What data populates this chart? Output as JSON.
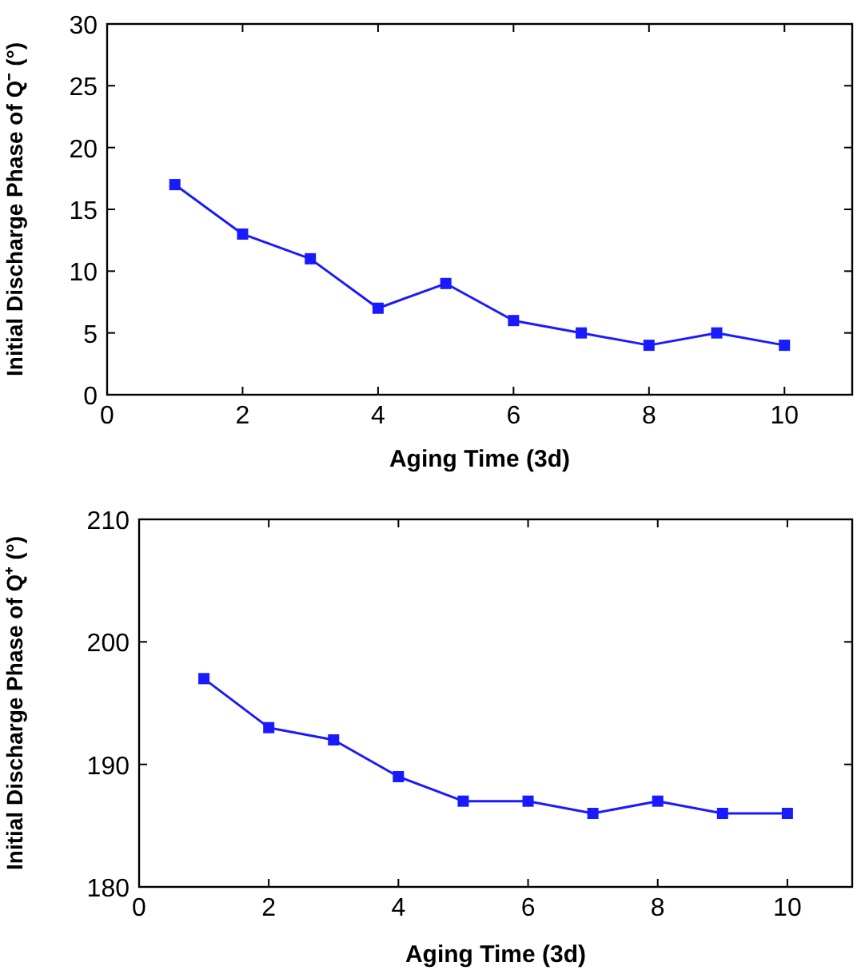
{
  "chart_data": [
    {
      "type": "line",
      "xlabel": "Aging Time (3d)",
      "ylabel": "Initial Discharge Phase of Q⁻ (°)",
      "x": [
        1,
        2,
        3,
        4,
        5,
        6,
        7,
        8,
        9,
        10
      ],
      "series": [
        {
          "color": "#1a1aff",
          "values": [
            17,
            13,
            11,
            7,
            9,
            6,
            5,
            4,
            5,
            4
          ]
        }
      ],
      "xlim": [
        0,
        11
      ],
      "xticks": [
        0,
        2,
        4,
        6,
        8,
        10
      ],
      "ylim": [
        0,
        30
      ],
      "yticks": [
        0,
        5,
        10,
        15,
        20,
        25,
        30
      ],
      "marker": "square",
      "line_style": "solid"
    },
    {
      "type": "line",
      "xlabel": "Aging Time (3d)",
      "ylabel": "Initial Discharge Phase of Q⁺ (°)",
      "x": [
        1,
        2,
        3,
        4,
        5,
        6,
        7,
        8,
        9,
        10
      ],
      "series": [
        {
          "color": "#1a1aff",
          "values": [
            197,
            193,
            192,
            189,
            187,
            187,
            186,
            187,
            186,
            186
          ]
        }
      ],
      "xlim": [
        0,
        11
      ],
      "xticks": [
        0,
        2,
        4,
        6,
        8,
        10
      ],
      "ylim": [
        180,
        210
      ],
      "yticks": [
        180,
        190,
        200,
        210
      ],
      "marker": "square",
      "line_style": "solid"
    }
  ]
}
